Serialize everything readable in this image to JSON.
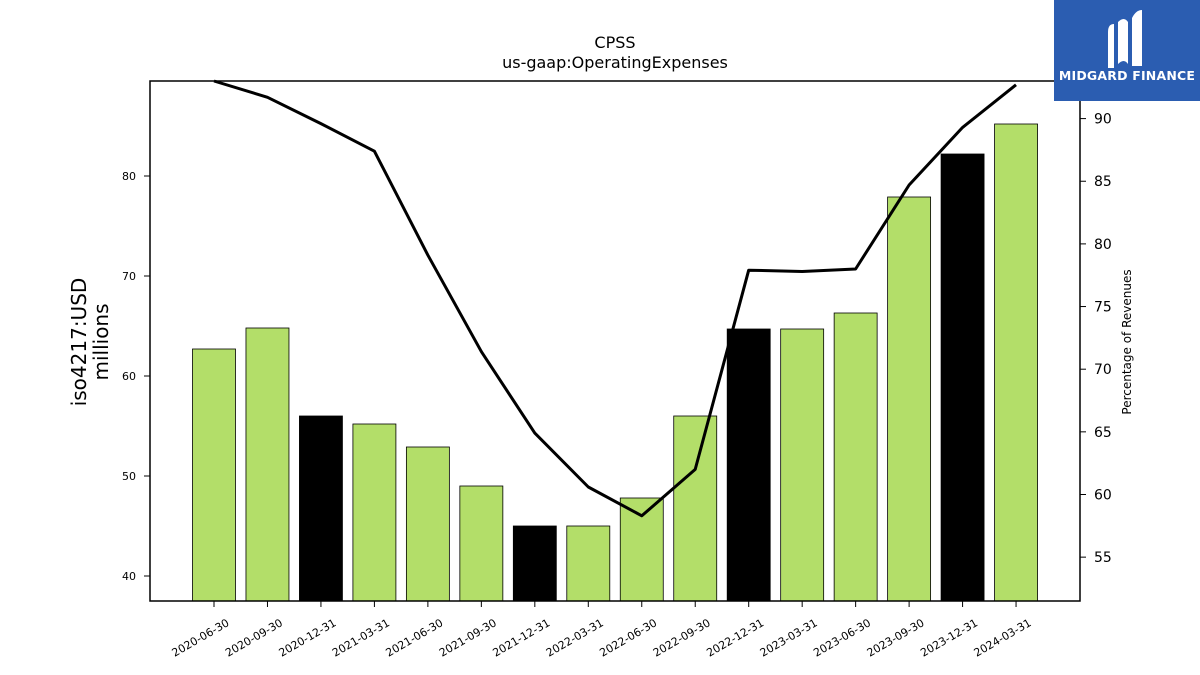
{
  "logo": {
    "text": "MIDGARD FINANCE"
  },
  "chart_data": {
    "type": "bar",
    "title": "CPSS",
    "subtitle": "us-gaap:OperatingExpenses",
    "ylabel_line1": "iso4217:USD",
    "ylabel_line2": "millions",
    "y2label": "Percentage of Revenues",
    "ylim": [
      37.5,
      89.5
    ],
    "y2lim": [
      51.5,
      93.0
    ],
    "yticks": [
      40,
      50,
      60,
      70,
      80
    ],
    "y2ticks": [
      55,
      60,
      65,
      70,
      75,
      80,
      85,
      90
    ],
    "categories": [
      "2020-06-30",
      "2020-09-30",
      "2020-12-31",
      "2021-03-31",
      "2021-06-30",
      "2021-09-30",
      "2021-12-31",
      "2022-03-31",
      "2022-06-30",
      "2022-09-30",
      "2022-12-31",
      "2023-03-31",
      "2023-06-30",
      "2023-09-30",
      "2023-12-31",
      "2024-03-31"
    ],
    "series": [
      {
        "values": [
          62.7,
          64.8,
          56.0,
          55.2,
          52.9,
          49.0,
          45.0,
          45.0,
          47.8,
          56.0,
          64.7,
          64.7,
          66.3,
          77.9,
          82.2,
          85.2
        ],
        "highlight": [
          false,
          false,
          true,
          false,
          false,
          false,
          true,
          false,
          false,
          false,
          true,
          false,
          false,
          false,
          true,
          false
        ]
      },
      {
        "axis": "right",
        "values": [
          93.0,
          91.7,
          89.6,
          87.4,
          79.1,
          71.4,
          64.9,
          60.6,
          58.3,
          62.0,
          77.9,
          77.8,
          78.0,
          84.7,
          89.3,
          92.7
        ]
      }
    ],
    "colors": {
      "bar": "#b3de69",
      "highlight": "#000000",
      "line": "#000000",
      "logo_bg": "#2b5db1"
    }
  }
}
